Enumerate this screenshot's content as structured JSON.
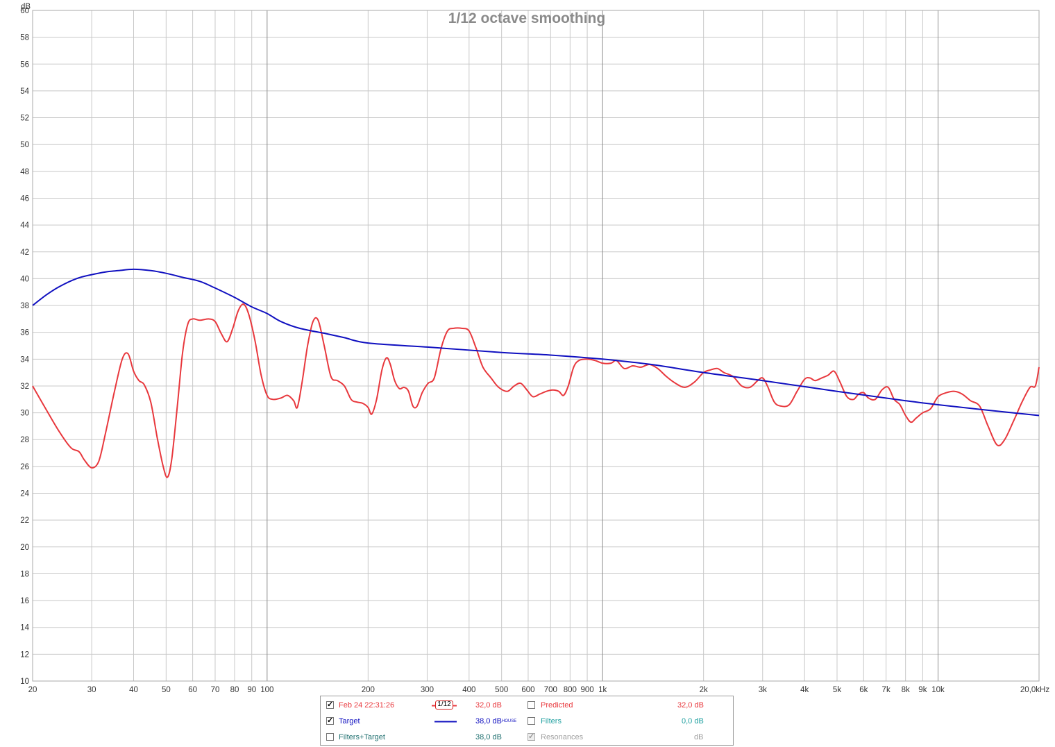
{
  "chart_data": {
    "type": "line",
    "title": "1/12 octave smoothing",
    "ylabel": "dB",
    "x_unit": "kHz",
    "x_scale": "log",
    "xlim": [
      20,
      20000
    ],
    "ylim": [
      10,
      60
    ],
    "ytick_step": 2,
    "grid": true,
    "x_ticks": [
      {
        "v": 20,
        "label": "20"
      },
      {
        "v": 30,
        "label": "30"
      },
      {
        "v": 40,
        "label": "40"
      },
      {
        "v": 50,
        "label": "50"
      },
      {
        "v": 60,
        "label": "60"
      },
      {
        "v": 70,
        "label": "70"
      },
      {
        "v": 80,
        "label": "80"
      },
      {
        "v": 90,
        "label": "90"
      },
      {
        "v": 100,
        "label": "100"
      },
      {
        "v": 200,
        "label": "200"
      },
      {
        "v": 300,
        "label": "300"
      },
      {
        "v": 400,
        "label": "400"
      },
      {
        "v": 500,
        "label": "500"
      },
      {
        "v": 600,
        "label": "600"
      },
      {
        "v": 700,
        "label": "700"
      },
      {
        "v": 800,
        "label": "800"
      },
      {
        "v": 900,
        "label": "900"
      },
      {
        "v": 1000,
        "label": "1k"
      },
      {
        "v": 2000,
        "label": "2k"
      },
      {
        "v": 3000,
        "label": "3k"
      },
      {
        "v": 4000,
        "label": "4k"
      },
      {
        "v": 5000,
        "label": "5k"
      },
      {
        "v": 6000,
        "label": "6k"
      },
      {
        "v": 7000,
        "label": "7k"
      },
      {
        "v": 8000,
        "label": "8k"
      },
      {
        "v": 9000,
        "label": "9k"
      },
      {
        "v": 10000,
        "label": "10k"
      },
      {
        "v": 20000,
        "label": "20,0kHz"
      }
    ],
    "series": [
      {
        "name": "Feb 24 22:31:26",
        "color": "#e8383d",
        "points": [
          [
            20,
            32.0
          ],
          [
            22,
            30.2
          ],
          [
            24,
            28.6
          ],
          [
            26,
            27.4
          ],
          [
            27.5,
            27.1
          ],
          [
            28.5,
            26.5
          ],
          [
            30,
            25.9
          ],
          [
            31.5,
            26.4
          ],
          [
            33,
            28.5
          ],
          [
            35,
            31.5
          ],
          [
            37,
            34.0
          ],
          [
            38.5,
            34.4
          ],
          [
            40,
            33.1
          ],
          [
            41.5,
            32.4
          ],
          [
            43,
            32.1
          ],
          [
            45,
            30.8
          ],
          [
            47,
            28.2
          ],
          [
            49,
            26.0
          ],
          [
            50.5,
            25.2
          ],
          [
            52,
            26.6
          ],
          [
            54,
            30.5
          ],
          [
            56,
            34.5
          ],
          [
            58,
            36.6
          ],
          [
            60,
            37.0
          ],
          [
            63,
            36.9
          ],
          [
            67,
            37.0
          ],
          [
            70,
            36.8
          ],
          [
            73,
            35.9
          ],
          [
            76,
            35.3
          ],
          [
            79,
            36.3
          ],
          [
            82,
            37.6
          ],
          [
            85,
            38.1
          ],
          [
            88,
            37.4
          ],
          [
            92,
            35.4
          ],
          [
            96,
            32.8
          ],
          [
            100,
            31.3
          ],
          [
            104,
            31.0
          ],
          [
            110,
            31.1
          ],
          [
            115,
            31.3
          ],
          [
            120,
            30.9
          ],
          [
            123,
            30.4
          ],
          [
            127,
            32.2
          ],
          [
            132,
            35.0
          ],
          [
            137,
            36.8
          ],
          [
            142,
            36.9
          ],
          [
            148,
            35.0
          ],
          [
            155,
            32.7
          ],
          [
            162,
            32.4
          ],
          [
            170,
            32.0
          ],
          [
            178,
            31.0
          ],
          [
            185,
            30.8
          ],
          [
            193,
            30.7
          ],
          [
            200,
            30.4
          ],
          [
            205,
            29.9
          ],
          [
            212,
            31.0
          ],
          [
            220,
            33.2
          ],
          [
            227,
            34.1
          ],
          [
            233,
            33.6
          ],
          [
            240,
            32.4
          ],
          [
            248,
            31.8
          ],
          [
            256,
            31.9
          ],
          [
            264,
            31.6
          ],
          [
            272,
            30.5
          ],
          [
            280,
            30.5
          ],
          [
            290,
            31.5
          ],
          [
            302,
            32.2
          ],
          [
            315,
            32.6
          ],
          [
            330,
            34.8
          ],
          [
            345,
            36.1
          ],
          [
            360,
            36.3
          ],
          [
            380,
            36.3
          ],
          [
            400,
            36.1
          ],
          [
            420,
            34.8
          ],
          [
            440,
            33.4
          ],
          [
            465,
            32.6
          ],
          [
            490,
            31.9
          ],
          [
            520,
            31.6
          ],
          [
            545,
            32.0
          ],
          [
            570,
            32.2
          ],
          [
            595,
            31.7
          ],
          [
            620,
            31.2
          ],
          [
            650,
            31.4
          ],
          [
            680,
            31.6
          ],
          [
            710,
            31.7
          ],
          [
            740,
            31.6
          ],
          [
            765,
            31.3
          ],
          [
            790,
            32.0
          ],
          [
            820,
            33.4
          ],
          [
            850,
            33.9
          ],
          [
            900,
            34.0
          ],
          [
            950,
            33.9
          ],
          [
            1000,
            33.7
          ],
          [
            1060,
            33.7
          ],
          [
            1100,
            33.9
          ],
          [
            1160,
            33.3
          ],
          [
            1230,
            33.5
          ],
          [
            1300,
            33.4
          ],
          [
            1380,
            33.6
          ],
          [
            1460,
            33.3
          ],
          [
            1550,
            32.7
          ],
          [
            1650,
            32.2
          ],
          [
            1760,
            31.9
          ],
          [
            1880,
            32.3
          ],
          [
            2000,
            33.0
          ],
          [
            2100,
            33.2
          ],
          [
            2200,
            33.3
          ],
          [
            2300,
            33.0
          ],
          [
            2450,
            32.7
          ],
          [
            2600,
            32.0
          ],
          [
            2750,
            31.9
          ],
          [
            2900,
            32.4
          ],
          [
            3000,
            32.6
          ],
          [
            3100,
            32.0
          ],
          [
            3250,
            30.8
          ],
          [
            3400,
            30.5
          ],
          [
            3600,
            30.6
          ],
          [
            3800,
            31.6
          ],
          [
            4000,
            32.5
          ],
          [
            4150,
            32.6
          ],
          [
            4300,
            32.4
          ],
          [
            4500,
            32.6
          ],
          [
            4700,
            32.8
          ],
          [
            4900,
            33.1
          ],
          [
            5100,
            32.3
          ],
          [
            5350,
            31.2
          ],
          [
            5600,
            31.0
          ],
          [
            5800,
            31.4
          ],
          [
            6000,
            31.5
          ],
          [
            6200,
            31.1
          ],
          [
            6500,
            31.0
          ],
          [
            6800,
            31.7
          ],
          [
            7100,
            31.9
          ],
          [
            7400,
            31.0
          ],
          [
            7700,
            30.6
          ],
          [
            8000,
            29.8
          ],
          [
            8300,
            29.3
          ],
          [
            8600,
            29.6
          ],
          [
            9000,
            30.0
          ],
          [
            9500,
            30.3
          ],
          [
            10000,
            31.2
          ],
          [
            10600,
            31.5
          ],
          [
            11200,
            31.6
          ],
          [
            11800,
            31.4
          ],
          [
            12500,
            30.9
          ],
          [
            13300,
            30.5
          ],
          [
            14100,
            29.0
          ],
          [
            15000,
            27.6
          ],
          [
            15800,
            28.0
          ],
          [
            16800,
            29.4
          ],
          [
            17800,
            30.8
          ],
          [
            18800,
            31.9
          ],
          [
            19500,
            32.0
          ],
          [
            20000,
            33.4
          ]
        ]
      },
      {
        "name": "Target",
        "color": "#1010c0",
        "points": [
          [
            20,
            38.0
          ],
          [
            22,
            38.8
          ],
          [
            24,
            39.4
          ],
          [
            27,
            40.0
          ],
          [
            30,
            40.3
          ],
          [
            33,
            40.5
          ],
          [
            36,
            40.6
          ],
          [
            40,
            40.7
          ],
          [
            45,
            40.6
          ],
          [
            50,
            40.4
          ],
          [
            56,
            40.1
          ],
          [
            63,
            39.8
          ],
          [
            70,
            39.3
          ],
          [
            80,
            38.6
          ],
          [
            90,
            37.9
          ],
          [
            100,
            37.4
          ],
          [
            110,
            36.8
          ],
          [
            125,
            36.3
          ],
          [
            150,
            35.9
          ],
          [
            170,
            35.6
          ],
          [
            200,
            35.2
          ],
          [
            300,
            34.9
          ],
          [
            500,
            34.5
          ],
          [
            700,
            34.3
          ],
          [
            1000,
            34.0
          ],
          [
            1400,
            33.6
          ],
          [
            2000,
            33.0
          ],
          [
            3000,
            32.4
          ],
          [
            5000,
            31.6
          ],
          [
            8000,
            30.9
          ],
          [
            10000,
            30.6
          ],
          [
            14000,
            30.2
          ],
          [
            20000,
            29.8
          ]
        ]
      }
    ]
  },
  "legend": {
    "row1": {
      "left_checked": "✓",
      "left_label": "Feb 24 22:31:26",
      "smoothing_badge": "1/12",
      "left_value": "32,0 dB",
      "right_label": "Predicted",
      "right_value": "32,0 dB"
    },
    "row2": {
      "left_checked": "✓",
      "left_label": "Target",
      "left_value": "38,0 dB",
      "left_value_sup": "HOUSE",
      "right_label": "Filters",
      "right_value": "0,0 dB"
    },
    "row3": {
      "left_label": "Filters+Target",
      "left_value": "38,0 dB",
      "right_checked": "✓",
      "right_label": "Resonances",
      "right_value": "dB"
    }
  },
  "colors": {
    "measurement": "#e8383d",
    "target": "#1010c0",
    "predicted": "#e8383d",
    "filters": "#20a0a0",
    "filters_target": "#207070",
    "disabled": "#a0a0a0"
  }
}
